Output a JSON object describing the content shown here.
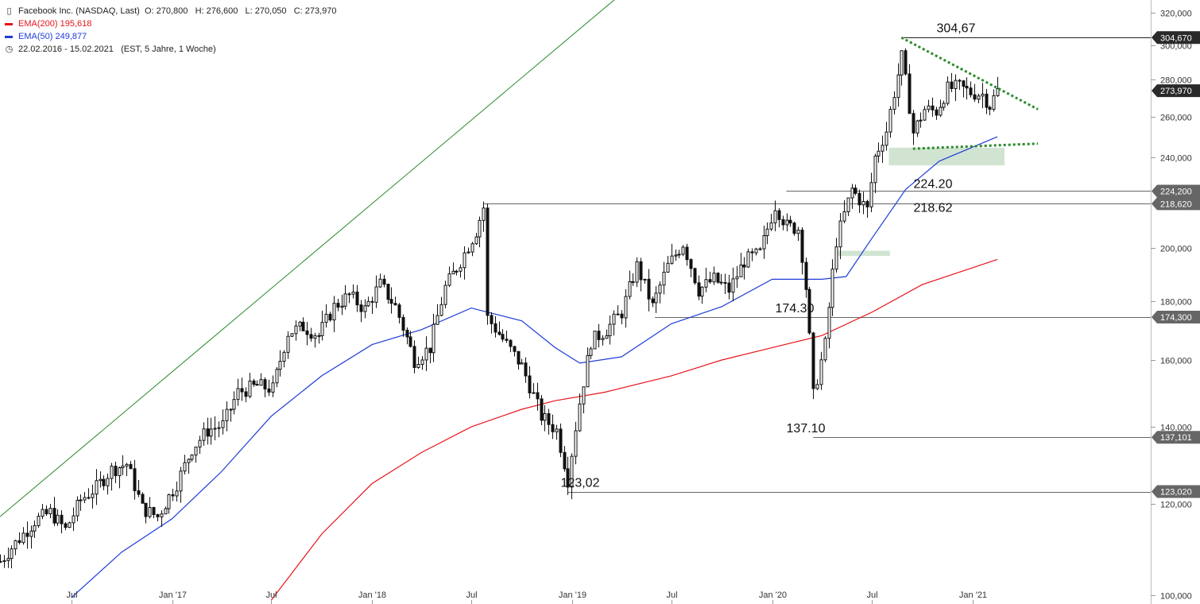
{
  "legend": {
    "instrument": "Facebook Inc. (NASDAQ, Last)",
    "ohlc": "O: 270,800   H: 276,600   L: 270,050   C: 273,970",
    "ema200_label": "EMA(200)",
    "ema200_value": "195,618",
    "ema50_label": "EMA(50)",
    "ema50_value": "249,877",
    "period": "22.02.2016 - 15.02.2021",
    "period_info": "(EST, 5 Jahre, 1 Woche)",
    "colors": {
      "ema200": "#e8141a",
      "ema50": "#1e3cd8",
      "trend": "#2a8a2a",
      "zone": "#cfe3cf"
    }
  },
  "chart_data": {
    "type": "candlestick",
    "y_axis": {
      "ticks": [
        "100,000",
        "120,000",
        "140,000",
        "160,000",
        "180,000",
        "200,000",
        "240,000",
        "260,000",
        "280,000",
        "300,000",
        "320,000"
      ],
      "tick_values": [
        100,
        120,
        140,
        160,
        180,
        200,
        240,
        260,
        280,
        300,
        320
      ],
      "scale": "log",
      "range": [
        100,
        320
      ]
    },
    "x_axis": {
      "ticks": [
        "Jul",
        "Jan '17",
        "Jul",
        "Jan '18",
        "Jul",
        "Jan '19",
        "Jul",
        "Jan '20",
        "Jul",
        "Jan '21"
      ],
      "tick_dates": [
        "2016-07-01",
        "2017-01-01",
        "2017-07-01",
        "2018-01-01",
        "2018-07-01",
        "2019-01-01",
        "2019-07-01",
        "2020-01-01",
        "2020-07-01",
        "2021-01-01"
      ],
      "range": [
        "2016-02-22",
        "2021-02-15"
      ]
    },
    "price_tags": [
      {
        "label": "304,670",
        "value": 304.67,
        "style": "dark"
      },
      {
        "label": "273,970",
        "value": 273.97,
        "style": "dark"
      },
      {
        "label": "224,200",
        "value": 224.2,
        "style": "grey"
      },
      {
        "label": "218,620",
        "value": 218.62,
        "style": "grey"
      },
      {
        "label": "174,300",
        "value": 174.3,
        "style": "grey"
      },
      {
        "label": "137,101",
        "value": 137.101,
        "style": "grey"
      },
      {
        "label": "123,020",
        "value": 123.02,
        "style": "grey"
      }
    ],
    "levels": [
      {
        "label": "304,67",
        "value": 304.67,
        "from": "2020-08-24"
      },
      {
        "label": "224.20",
        "value": 224.2,
        "from": "2020-01-27"
      },
      {
        "label": "218.62",
        "value": 218.62,
        "from": "2018-07-23"
      },
      {
        "label": "174.30",
        "value": 174.3,
        "from": "2019-06-01"
      },
      {
        "label": "137.10",
        "value": 137.1,
        "from": "2020-03-16"
      },
      {
        "label": "123,02",
        "value": 123.02,
        "from": "2018-12-24"
      }
    ],
    "trendline": {
      "from": [
        "2016-02-22",
        117
      ],
      "to": [
        "2021-01-01",
        600
      ]
    },
    "resistance": {
      "from": [
        "2020-08-24",
        304.67
      ],
      "to": [
        "2021-04-30",
        264
      ]
    },
    "support": {
      "from": [
        "2020-09-14",
        244
      ],
      "to": [
        "2021-04-30",
        246.5
      ]
    },
    "zones": [
      {
        "from": "2020-08-01",
        "to": "2021-02-28",
        "low": 236,
        "high": 244.5
      },
      {
        "from": "2020-04-27",
        "to": "2020-08-03",
        "low": 197,
        "high": 199
      }
    ],
    "ema200": [
      [
        "2017-07-01",
        99
      ],
      [
        "2017-10-01",
        113
      ],
      [
        "2018-01-01",
        125
      ],
      [
        "2018-04-01",
        133
      ],
      [
        "2018-07-01",
        140
      ],
      [
        "2018-10-01",
        145
      ],
      [
        "2018-12-01",
        147.5
      ],
      [
        "2019-03-01",
        150
      ],
      [
        "2019-07-01",
        155
      ],
      [
        "2019-10-01",
        160
      ],
      [
        "2020-01-01",
        164
      ],
      [
        "2020-04-01",
        168
      ],
      [
        "2020-07-01",
        176
      ],
      [
        "2020-10-01",
        186
      ],
      [
        "2021-02-15",
        195.6
      ]
    ],
    "ema50": [
      [
        "2016-07-01",
        99.5
      ],
      [
        "2016-10-01",
        109
      ],
      [
        "2017-01-01",
        116.5
      ],
      [
        "2017-04-01",
        128
      ],
      [
        "2017-07-01",
        143
      ],
      [
        "2017-10-01",
        155
      ],
      [
        "2018-01-01",
        165
      ],
      [
        "2018-04-01",
        170
      ],
      [
        "2018-07-01",
        177.5
      ],
      [
        "2018-10-01",
        173
      ],
      [
        "2018-12-01",
        164
      ],
      [
        "2019-01-15",
        159
      ],
      [
        "2019-04-01",
        161
      ],
      [
        "2019-07-01",
        172
      ],
      [
        "2019-10-01",
        178
      ],
      [
        "2020-01-01",
        188
      ],
      [
        "2020-04-01",
        188
      ],
      [
        "2020-05-15",
        189
      ],
      [
        "2020-07-01",
        204
      ],
      [
        "2020-09-01",
        225
      ],
      [
        "2020-11-01",
        238
      ],
      [
        "2021-02-15",
        249.9
      ]
    ],
    "weekly_close": [
      [
        "2016-02-22",
        107
      ],
      [
        "2016-03-21",
        111
      ],
      [
        "2016-04-25",
        116
      ],
      [
        "2016-05-23",
        118
      ],
      [
        "2016-06-20",
        114
      ],
      [
        "2016-07-18",
        121
      ],
      [
        "2016-08-15",
        124
      ],
      [
        "2016-09-12",
        128.5
      ],
      [
        "2016-10-10",
        130
      ],
      [
        "2016-11-07",
        119
      ],
      [
        "2016-12-05",
        117
      ],
      [
        "2017-01-09",
        125
      ],
      [
        "2017-02-06",
        134
      ],
      [
        "2017-03-06",
        139
      ],
      [
        "2017-04-03",
        140.5
      ],
      [
        "2017-05-01",
        150
      ],
      [
        "2017-06-05",
        152
      ],
      [
        "2017-07-03",
        151
      ],
      [
        "2017-07-31",
        169
      ],
      [
        "2017-08-28",
        171
      ],
      [
        "2017-09-25",
        168
      ],
      [
        "2017-10-23",
        178
      ],
      [
        "2017-11-20",
        182
      ],
      [
        "2017-12-18",
        177
      ],
      [
        "2018-01-15",
        186
      ],
      [
        "2018-02-12",
        178
      ],
      [
        "2018-03-19",
        160
      ],
      [
        "2018-04-16",
        164
      ],
      [
        "2018-05-14",
        185
      ],
      [
        "2018-06-11",
        195
      ],
      [
        "2018-07-09",
        207
      ],
      [
        "2018-07-23",
        217
      ],
      [
        "2018-07-30",
        174
      ],
      [
        "2018-09-03",
        165
      ],
      [
        "2018-10-01",
        158
      ],
      [
        "2018-11-05",
        143
      ],
      [
        "2018-12-03",
        139
      ],
      [
        "2018-12-24",
        126
      ],
      [
        "2019-01-14",
        147
      ],
      [
        "2019-02-04",
        166
      ],
      [
        "2019-03-04",
        170
      ],
      [
        "2019-04-01",
        176
      ],
      [
        "2019-04-29",
        193
      ],
      [
        "2019-05-27",
        178
      ],
      [
        "2019-06-24",
        193
      ],
      [
        "2019-07-22",
        202
      ],
      [
        "2019-08-19",
        184
      ],
      [
        "2019-09-16",
        188
      ],
      [
        "2019-10-14",
        184
      ],
      [
        "2019-11-11",
        195
      ],
      [
        "2019-12-09",
        198
      ],
      [
        "2020-01-06",
        218
      ],
      [
        "2020-01-27",
        209
      ],
      [
        "2020-02-18",
        208
      ],
      [
        "2020-03-02",
        185
      ],
      [
        "2020-03-16",
        149
      ],
      [
        "2020-04-06",
        165
      ],
      [
        "2020-04-27",
        203
      ],
      [
        "2020-05-25",
        225
      ],
      [
        "2020-06-22",
        216
      ],
      [
        "2020-07-06",
        240
      ],
      [
        "2020-07-27",
        253
      ],
      [
        "2020-08-24",
        293
      ],
      [
        "2020-09-14",
        252
      ],
      [
        "2020-10-05",
        264
      ],
      [
        "2020-10-26",
        263
      ],
      [
        "2020-11-16",
        275
      ],
      [
        "2020-12-07",
        276
      ],
      [
        "2020-12-28",
        273
      ],
      [
        "2021-01-18",
        272
      ],
      [
        "2021-02-01",
        266
      ],
      [
        "2021-02-15",
        274
      ]
    ]
  }
}
